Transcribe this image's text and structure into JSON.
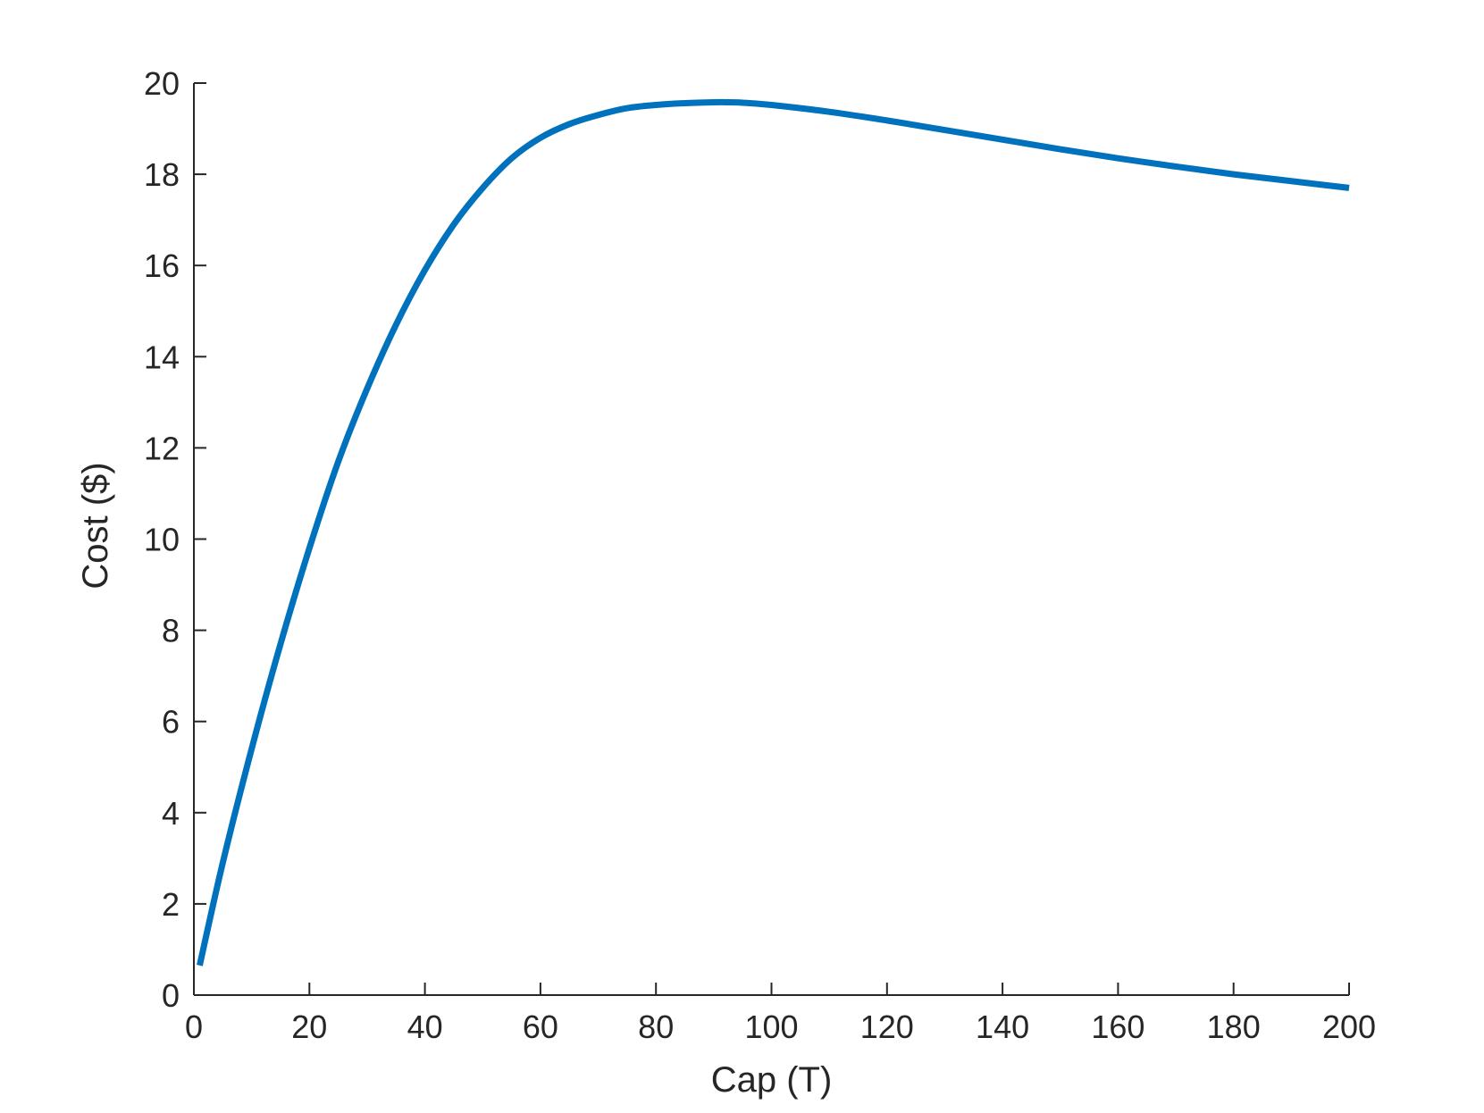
{
  "chart_data": {
    "type": "line",
    "xlabel": "Cap (T)",
    "ylabel": "Cost ($)",
    "xlim": [
      0,
      200
    ],
    "ylim": [
      0,
      20
    ],
    "xticks": [
      0,
      20,
      40,
      60,
      80,
      100,
      120,
      140,
      160,
      180,
      200
    ],
    "xtick_labels": [
      "0",
      "20",
      "40",
      "60",
      "80",
      "100",
      "120",
      "140",
      "160",
      "180",
      "200"
    ],
    "yticks": [
      0,
      2,
      4,
      6,
      8,
      10,
      12,
      14,
      16,
      18,
      20
    ],
    "ytick_labels": [
      "0",
      "2",
      "4",
      "6",
      "8",
      "10",
      "12",
      "14",
      "16",
      "18",
      "20"
    ],
    "grid": false,
    "line_color": "#0072BD",
    "series": [
      {
        "x": [
          1,
          5,
          10,
          15,
          20,
          25,
          30,
          35,
          40,
          45,
          50,
          55,
          60,
          65,
          70,
          75,
          80,
          85,
          90,
          92,
          95,
          100,
          110,
          120,
          130,
          140,
          150,
          160,
          170,
          180,
          190,
          200
        ],
        "y": [
          0.65,
          2.9,
          5.4,
          7.7,
          9.8,
          11.7,
          13.3,
          14.7,
          15.9,
          16.9,
          17.7,
          18.35,
          18.8,
          19.1,
          19.3,
          19.45,
          19.52,
          19.56,
          19.58,
          19.58,
          19.57,
          19.52,
          19.37,
          19.18,
          18.97,
          18.76,
          18.55,
          18.35,
          18.17,
          18.0,
          17.85,
          17.7
        ]
      }
    ]
  }
}
